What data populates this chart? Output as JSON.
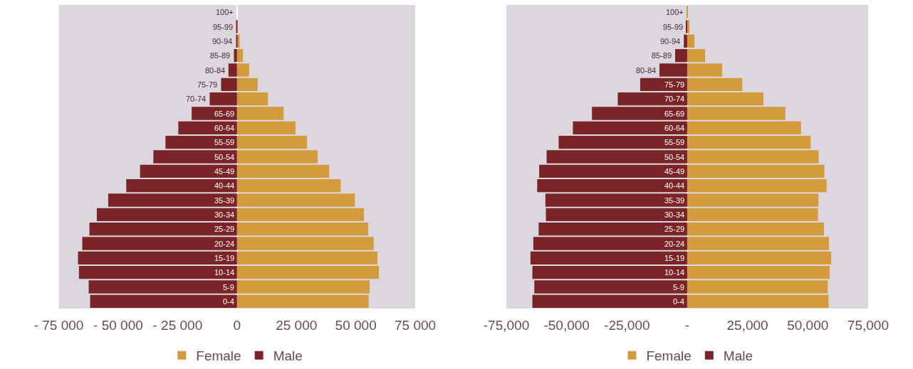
{
  "chart_data": [
    {
      "type": "bar",
      "orientation": "horizontal",
      "stacked": true,
      "legend": "bottom",
      "grid": false,
      "categories": [
        "100+",
        "95-99",
        "90-94",
        "85-89",
        "80-84",
        "75-79",
        "70-74",
        "65-69",
        "60-64",
        "55-59",
        "50-54",
        "45-49",
        "40-44",
        "35-39",
        "30-34",
        "25-29",
        "20-24",
        "15-19",
        "10-14",
        "5-9",
        "0-4"
      ],
      "series": [
        {
          "name": "Female",
          "color": "#d39b3c",
          "values": [
            0,
            200,
            1100,
            2500,
            5100,
            8700,
            13000,
            19600,
            24600,
            29400,
            33900,
            38800,
            43600,
            49600,
            53400,
            55200,
            57500,
            59100,
            59700,
            55800,
            55400
          ]
        },
        {
          "name": "Male",
          "color": "#7a2428",
          "values": [
            0,
            -100,
            -400,
            -1300,
            -3600,
            -6700,
            -11500,
            -19100,
            -24700,
            -30100,
            -35200,
            -40800,
            -46600,
            -54200,
            -59000,
            -62100,
            -65100,
            -66900,
            -66500,
            -62400,
            -61800
          ]
        }
      ],
      "xlim": [
        -75000,
        75000
      ],
      "xticks": [
        {
          "value": -75000,
          "label": "- 75 000"
        },
        {
          "value": -50000,
          "label": "- 50 000"
        },
        {
          "value": -25000,
          "label": "- 25 000"
        },
        0,
        {
          "value": 25000,
          "label": "25 000"
        },
        {
          "value": 50000,
          "label": "50 000"
        },
        {
          "value": 75000,
          "label": "75 000"
        }
      ]
    },
    {
      "type": "bar",
      "orientation": "horizontal",
      "stacked": true,
      "legend": "bottom",
      "grid": false,
      "categories": [
        "100+",
        "95-99",
        "90-94",
        "85-89",
        "80-84",
        "75-79",
        "70-74",
        "65-69",
        "60-64",
        "55-59",
        "50-54",
        "45-49",
        "40-44",
        "35-39",
        "30-34",
        "25-29",
        "20-24",
        "15-19",
        "10-14",
        "5-9",
        "0-4"
      ],
      "series": [
        {
          "name": "Female",
          "color": "#d39b3c",
          "values": [
            100,
            900,
            3000,
            7400,
            14500,
            22800,
            31600,
            40700,
            47200,
            51200,
            54500,
            56900,
            57800,
            54400,
            54200,
            56700,
            58800,
            59700,
            59100,
            58300,
            58600
          ]
        },
        {
          "name": "Male",
          "color": "#7a2428",
          "values": [
            0,
            -300,
            -1400,
            -5000,
            -11500,
            -19500,
            -28800,
            -39500,
            -47400,
            -53300,
            -58300,
            -61400,
            -62200,
            -58800,
            -58600,
            -61600,
            -63800,
            -65000,
            -64200,
            -63400,
            -64200
          ]
        }
      ],
      "xlim": [
        -75000,
        75000
      ],
      "xticks": [
        {
          "value": -75000,
          "label": "-75,000"
        },
        {
          "value": -50000,
          "label": "-50,000"
        },
        {
          "value": -25000,
          "label": "-25,000"
        },
        {
          "value": 0,
          "label": "-"
        },
        {
          "value": 25000,
          "label": "25,000"
        },
        {
          "value": 50000,
          "label": "50,000"
        },
        {
          "value": 75000,
          "label": "75,000"
        }
      ]
    }
  ]
}
